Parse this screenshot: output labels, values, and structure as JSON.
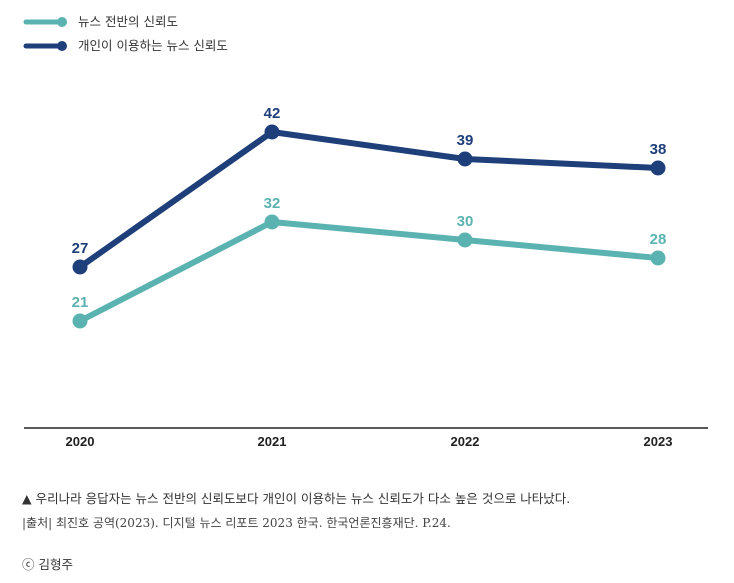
{
  "chart_data": {
    "type": "line",
    "categories": [
      "2020",
      "2021",
      "2022",
      "2023"
    ],
    "series": [
      {
        "name": "뉴스 전반의 신뢰도",
        "values": [
          21,
          32,
          30,
          28
        ],
        "color": "#5ab3b0"
      },
      {
        "name": "개인이 이용하는 뉴스 신뢰도",
        "values": [
          27,
          42,
          39,
          38
        ],
        "color": "#1e3f7a"
      }
    ],
    "title": "",
    "xlabel": "",
    "ylabel": "",
    "ylim": [
      10,
      50
    ],
    "grid": false,
    "legend_position": "top-left"
  },
  "caption": {
    "marker": "▲",
    "text": "우리나라 응답자는 뉴스 전반의 신뢰도보다 개인이 이용하는 뉴스 신뢰도가 다소 높은 것으로 나타났다."
  },
  "source": "|출처| 최진호 공역(2023). 디지털 뉴스 리포트 2023 한국. 한국언론진흥재단. P.24.",
  "credit": {
    "symbol": "ⓒ",
    "name": "김형주"
  }
}
